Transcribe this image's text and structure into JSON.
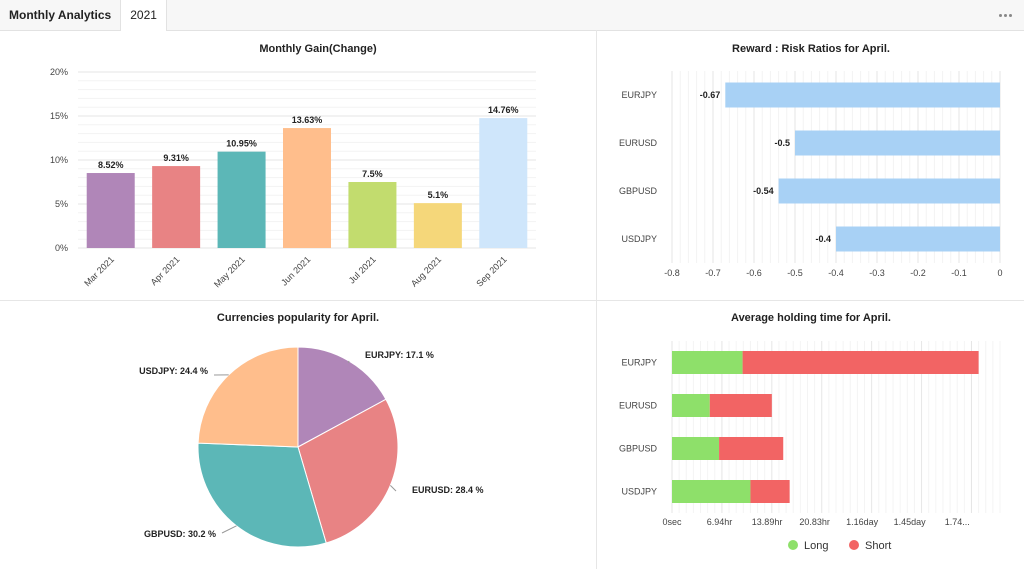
{
  "header": {
    "title": "Monthly Analytics",
    "year_tab": "2021",
    "more_icon": "more-horizontal-icon"
  },
  "chart_data": [
    {
      "id": "monthly_gain",
      "type": "bar",
      "title": "Monthly Gain(Change)",
      "categories": [
        "Mar 2021",
        "Apr 2021",
        "May 2021",
        "Jun 2021",
        "Jul 2021",
        "Aug 2021",
        "Sep 2021"
      ],
      "values": [
        8.52,
        9.31,
        10.95,
        13.63,
        7.5,
        5.1,
        14.76
      ],
      "data_labels": [
        "8.52%",
        "9.31%",
        "10.95%",
        "13.63%",
        "7.5%",
        "5.1%",
        "14.76%"
      ],
      "colors": [
        "#b086b8",
        "#e88384",
        "#5cb7b7",
        "#ffbe8c",
        "#c2dc6e",
        "#f5d77a",
        "#cfe6fb"
      ],
      "ylim": [
        0,
        20
      ],
      "yticks": [
        "0%",
        "5%",
        "10%",
        "15%",
        "20%"
      ],
      "grid": true
    },
    {
      "id": "reward_risk",
      "type": "bar",
      "orientation": "horizontal",
      "title": "Reward : Risk Ratios for April.",
      "categories": [
        "EURJPY",
        "EURUSD",
        "GBPUSD",
        "USDJPY"
      ],
      "values": [
        -0.67,
        -0.5,
        -0.54,
        -0.4
      ],
      "data_labels": [
        "-0.67",
        "-0.5",
        "-0.54",
        "-0.4"
      ],
      "color": "#a8d1f5",
      "xlim": [
        -0.8,
        0
      ],
      "xticks": [
        "-0.8",
        "-0.7",
        "-0.6",
        "-0.5",
        "-0.4",
        "-0.3",
        "-0.2",
        "-0.1",
        "0"
      ],
      "grid": true
    },
    {
      "id": "currency_popularity",
      "type": "pie",
      "title": "Currencies popularity for April.",
      "slices": [
        {
          "label": "EURJPY: 17.1 %",
          "value": 17.1,
          "color": "#b086b8"
        },
        {
          "label": "EURUSD: 28.4 %",
          "value": 28.4,
          "color": "#e88384"
        },
        {
          "label": "GBPUSD: 30.2 %",
          "value": 30.2,
          "color": "#5cb7b7"
        },
        {
          "label": "USDJPY: 24.4 %",
          "value": 24.4,
          "color": "#ffbe8c"
        }
      ]
    },
    {
      "id": "holding_time",
      "type": "bar",
      "orientation": "horizontal",
      "stacked": true,
      "title": "Average holding time for April.",
      "categories": [
        "EURJPY",
        "EURUSD",
        "GBPUSD",
        "USDJPY"
      ],
      "series": [
        {
          "name": "Long",
          "color": "#8ee06a",
          "values": [
            9.9,
            5.3,
            6.6,
            11.0
          ]
        },
        {
          "name": "Short",
          "color": "#f26464",
          "values": [
            33.1,
            8.7,
            9.0,
            5.5
          ]
        }
      ],
      "x_unit": "hr",
      "xlim": [
        0,
        46
      ],
      "xticks": [
        "0sec",
        "6.94hr",
        "13.89hr",
        "20.83hr",
        "1.16day",
        "1.45day",
        "1.74..."
      ],
      "legend": "bottom",
      "grid": true
    }
  ]
}
